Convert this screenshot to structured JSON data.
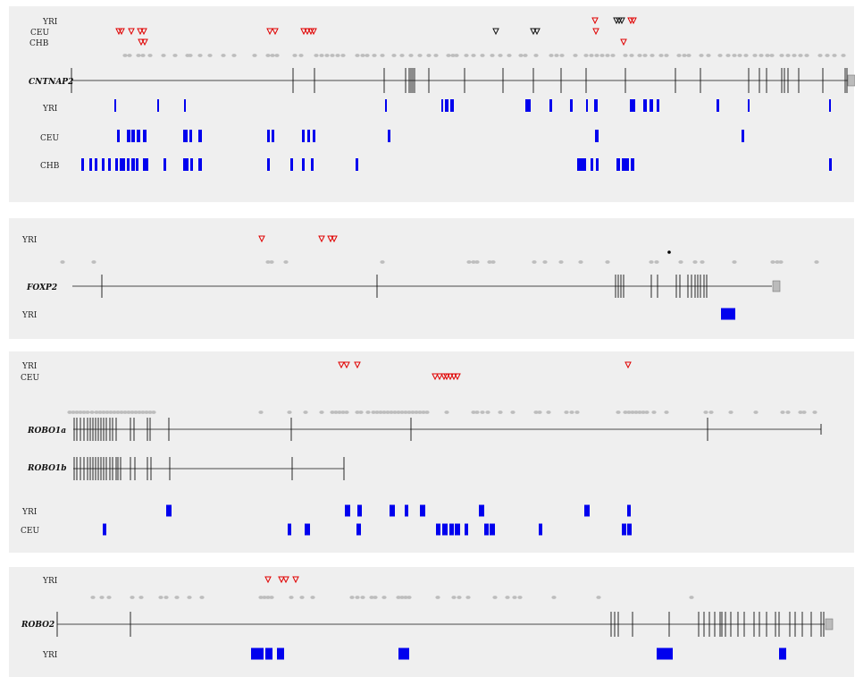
{
  "panels": [
    {
      "gene": "CNTNAP2",
      "span": 945,
      "triangle_rows": [
        {
          "label": "YRI",
          "red": [
            666,
            706,
            709
          ],
          "black": [
            690,
            693,
            696
          ]
        },
        {
          "label": "CEU",
          "red": [
            133,
            136,
            147,
            157,
            161,
            302,
            308,
            340,
            344,
            348,
            351,
            667
          ],
          "black": [
            555,
            597,
            601
          ]
        },
        {
          "label": "CHB",
          "red": [
            158,
            162,
            698
          ],
          "black": []
        }
      ],
      "snp_dots": [
        140,
        145,
        155,
        160,
        168,
        183,
        196,
        210,
        213,
        224,
        235,
        250,
        262,
        285,
        300,
        305,
        310,
        330,
        337,
        354,
        360,
        366,
        372,
        378,
        384,
        400,
        406,
        411,
        419,
        428,
        441,
        450,
        460,
        470,
        480,
        488,
        502,
        507,
        511,
        522,
        530,
        540,
        551,
        560,
        570,
        583,
        588,
        600,
        617,
        623,
        629,
        644,
        656,
        662,
        668,
        674,
        680,
        686,
        700,
        707,
        716,
        722,
        730,
        740,
        746,
        760,
        766,
        771,
        785,
        793,
        806,
        815,
        822,
        828,
        835,
        845,
        852,
        859,
        864,
        875,
        882,
        889,
        896,
        903,
        918,
        926,
        934,
        944
      ],
      "exons": [
        80,
        328,
        352,
        430,
        454,
        458,
        460,
        462,
        464,
        480,
        520,
        563,
        597,
        628,
        656,
        700,
        756,
        784,
        838,
        850,
        858,
        875,
        878,
        882,
        894,
        921,
        946,
        948
      ],
      "utr": 949,
      "bar_rows": [
        {
          "label": "YRI",
          "segments": [
            [
              128,
              2
            ],
            [
              176,
              2
            ],
            [
              206,
              2
            ],
            [
              431,
              2
            ],
            [
              494,
              2
            ],
            [
              498,
              4
            ],
            [
              504,
              4
            ],
            [
              588,
              6
            ],
            [
              615,
              3
            ],
            [
              638,
              3
            ],
            [
              656,
              2
            ],
            [
              665,
              4
            ],
            [
              705,
              6
            ],
            [
              720,
              4
            ],
            [
              727,
              4
            ],
            [
              735,
              3
            ],
            [
              802,
              3
            ],
            [
              837,
              2
            ],
            [
              928,
              2
            ]
          ]
        },
        {
          "label": "CEU",
          "segments": [
            [
              131,
              3
            ],
            [
              142,
              4
            ],
            [
              147,
              4
            ],
            [
              153,
              4
            ],
            [
              160,
              4
            ],
            [
              205,
              5
            ],
            [
              212,
              3
            ],
            [
              222,
              4
            ],
            [
              299,
              3
            ],
            [
              304,
              3
            ],
            [
              338,
              3
            ],
            [
              344,
              3
            ],
            [
              350,
              3
            ],
            [
              434,
              3
            ],
            [
              666,
              4
            ],
            [
              830,
              3
            ]
          ]
        },
        {
          "label": "CHB",
          "segments": [
            [
              91,
              3
            ],
            [
              100,
              3
            ],
            [
              106,
              3
            ],
            [
              114,
              3
            ],
            [
              121,
              3
            ],
            [
              129,
              3
            ],
            [
              134,
              6
            ],
            [
              142,
              3
            ],
            [
              147,
              4
            ],
            [
              152,
              3
            ],
            [
              160,
              6
            ],
            [
              183,
              3
            ],
            [
              205,
              6
            ],
            [
              213,
              3
            ],
            [
              222,
              4
            ],
            [
              299,
              3
            ],
            [
              325,
              3
            ],
            [
              338,
              3
            ],
            [
              348,
              3
            ],
            [
              398,
              3
            ],
            [
              646,
              10
            ],
            [
              661,
              3
            ],
            [
              667,
              3
            ],
            [
              690,
              4
            ],
            [
              696,
              4
            ],
            [
              700,
              4
            ],
            [
              706,
              4
            ],
            [
              928,
              3
            ]
          ]
        }
      ]
    },
    {
      "gene": "FOXP2",
      "span": 864,
      "triangle_rows": [
        {
          "label": "YRI",
          "red": [
            293,
            360,
            370,
            374
          ],
          "black": []
        }
      ],
      "point": 749,
      "snp_dots": [
        70,
        105,
        300,
        304,
        320,
        428,
        525,
        530,
        534,
        548,
        552,
        598,
        610,
        628,
        650,
        680,
        729,
        735,
        762,
        778,
        786,
        822,
        865,
        870,
        874,
        914
      ],
      "exons": [
        114,
        422,
        689,
        692,
        695,
        698,
        729,
        736,
        757,
        761,
        770,
        774,
        778,
        781,
        784,
        788,
        791
      ],
      "utr": 865,
      "bar_rows": [
        {
          "label": "YRI",
          "segments": [
            [
              807,
              16
            ]
          ]
        }
      ]
    },
    {
      "gene": "ROBO1",
      "genes": [
        "ROBO1a",
        "ROBO1b"
      ],
      "triangle_rows": [
        {
          "label": "YRI",
          "red": [
            382,
            388,
            400,
            703
          ],
          "black": []
        },
        {
          "label": "CEU",
          "red": [
            487,
            492,
            497,
            500,
            504,
            508,
            512
          ],
          "black": []
        }
      ],
      "snp_dots": [
        78,
        82,
        86,
        90,
        94,
        98,
        103,
        108,
        112,
        116,
        120,
        124,
        128,
        132,
        136,
        140,
        144,
        148,
        152,
        156,
        160,
        164,
        168,
        172,
        292,
        324,
        342,
        360,
        372,
        376,
        380,
        384,
        388,
        400,
        404,
        412,
        418,
        422,
        426,
        430,
        434,
        438,
        442,
        446,
        450,
        454,
        458,
        462,
        466,
        470,
        474,
        478,
        500,
        530,
        534,
        540,
        546,
        560,
        574,
        600,
        604,
        614,
        634,
        640,
        646,
        692,
        700,
        704,
        708,
        712,
        716,
        720,
        724,
        732,
        746,
        790,
        796,
        818,
        846,
        876,
        882,
        896,
        900,
        912
      ],
      "exons_a": [
        83,
        86,
        90,
        94,
        98,
        101,
        104,
        107,
        110,
        113,
        116,
        119,
        123,
        126,
        130,
        146,
        150,
        165,
        168,
        189,
        326,
        460,
        792
      ],
      "exons_b": [
        83,
        86,
        90,
        94,
        98,
        101,
        104,
        107,
        110,
        113,
        116,
        119,
        123,
        126,
        130,
        132,
        135,
        146,
        151,
        165,
        169,
        190,
        327
      ],
      "span_a": 919,
      "span_b": 385,
      "bar_rows": [
        {
          "label": "YRI",
          "segments": [
            [
              186,
              6
            ],
            [
              386,
              6
            ],
            [
              400,
              5
            ],
            [
              436,
              6
            ],
            [
              453,
              4
            ],
            [
              470,
              6
            ],
            [
              536,
              6
            ],
            [
              654,
              6
            ],
            [
              702,
              4
            ]
          ]
        },
        {
          "label": "CEU",
          "segments": [
            [
              115,
              4
            ],
            [
              322,
              4
            ],
            [
              341,
              6
            ],
            [
              399,
              5
            ],
            [
              488,
              5
            ],
            [
              495,
              6
            ],
            [
              503,
              5
            ],
            [
              509,
              6
            ],
            [
              520,
              4
            ],
            [
              542,
              5
            ],
            [
              548,
              6
            ],
            [
              603,
              4
            ],
            [
              696,
              5
            ],
            [
              702,
              5
            ]
          ]
        }
      ]
    },
    {
      "gene": "ROBO2",
      "span": 923,
      "triangle_rows": [
        {
          "label": "YRI",
          "red": [
            300,
            315,
            320,
            331
          ],
          "black": []
        }
      ],
      "snp_dots": [
        104,
        114,
        122,
        148,
        158,
        180,
        186,
        198,
        212,
        226,
        292,
        296,
        300,
        304,
        326,
        338,
        350,
        394,
        400,
        406,
        416,
        420,
        430,
        446,
        450,
        454,
        458,
        490,
        508,
        514,
        524,
        554,
        568,
        576,
        582,
        620,
        670,
        774
      ],
      "exons": [
        64,
        146,
        684,
        688,
        692,
        708,
        749,
        782,
        788,
        794,
        800,
        806,
        808,
        812,
        818,
        826,
        833,
        844,
        850,
        858,
        868,
        872,
        884,
        890,
        898,
        908,
        919,
        922
      ],
      "utr": 924,
      "bar_rows": [
        {
          "label": "YRI",
          "segments": [
            [
              281,
              14
            ],
            [
              297,
              8
            ],
            [
              310,
              8
            ],
            [
              446,
              12
            ],
            [
              735,
              18
            ],
            [
              872,
              8
            ]
          ]
        }
      ]
    }
  ],
  "colors": {
    "panel_bg": "#efefef",
    "bar": "#0000ee",
    "triangle_red": "#e00000",
    "triangle_black": "#111111",
    "snp": "#bdbdbd",
    "line": "#111111",
    "utr": "#bbbbbb"
  }
}
